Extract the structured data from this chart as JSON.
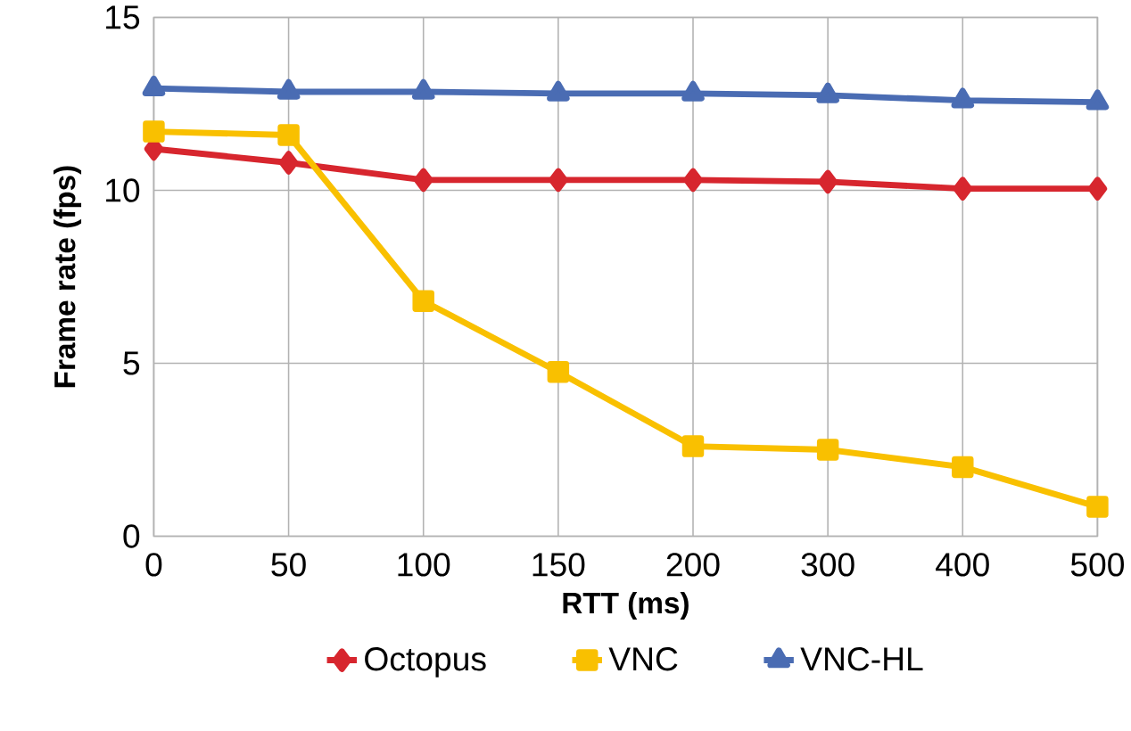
{
  "chart_data": {
    "type": "line",
    "xlabel": "RTT (ms)",
    "ylabel": "Frame rate (fps)",
    "categories": [
      "0",
      "50",
      "100",
      "150",
      "200",
      "300",
      "400",
      "500"
    ],
    "series": [
      {
        "name": "Octopus",
        "color": "#d7262e",
        "marker": "diamond",
        "values": [
          11.2,
          10.8,
          10.3,
          10.3,
          10.3,
          10.25,
          10.05,
          10.05
        ]
      },
      {
        "name": "VNC",
        "color": "#f9c000",
        "marker": "square",
        "values": [
          11.7,
          11.6,
          6.8,
          4.75,
          2.6,
          2.5,
          2.0,
          0.85
        ]
      },
      {
        "name": "VNC-HL",
        "color": "#4a6cb3",
        "marker": "triangle",
        "values": [
          12.95,
          12.85,
          12.85,
          12.8,
          12.8,
          12.75,
          12.6,
          12.55
        ]
      }
    ],
    "ylim": [
      0,
      15
    ],
    "yticks": [
      0,
      5,
      10,
      15
    ],
    "grid": true,
    "legend": "bottom"
  }
}
